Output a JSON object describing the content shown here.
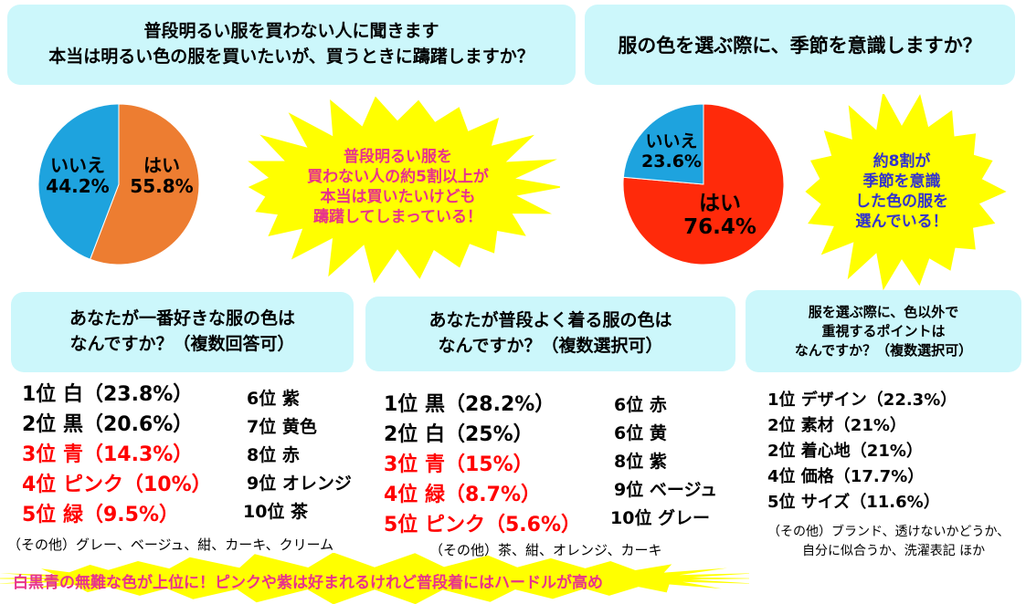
{
  "q1": {
    "question_lines": [
      "普段明るい服を買わない人に聞きます",
      "本当は明るい色の服を買いたいが、買うときに躊躇しますか？"
    ],
    "burst_lines": [
      "普段明るい服を",
      "買わない人の約5割以上が",
      "本当は買いたいけども",
      "躊躇してしまっている！"
    ]
  },
  "q2": {
    "question": "服の色を選ぶ際に、季節を意識しますか？",
    "burst_lines": [
      "約8割が",
      "季節を意識",
      "した色の服を",
      "選んでいる！"
    ]
  },
  "chart_data": [
    {
      "type": "pie",
      "categories": [
        "はい",
        "いいえ"
      ],
      "values": [
        55.8,
        44.2
      ],
      "value_labels": [
        "55.8%",
        "44.2%"
      ],
      "colors": [
        "#ed7d31",
        "#1ea3de"
      ]
    },
    {
      "type": "pie",
      "categories": [
        "はい",
        "いいえ"
      ],
      "values": [
        76.4,
        23.6
      ],
      "value_labels": [
        "76.4%",
        "23.6%"
      ],
      "colors": [
        "#ff2a0a",
        "#1ea3de"
      ]
    }
  ],
  "q3": {
    "question_lines": [
      "あなたが一番好きな服の色は",
      "なんですか？（複数回答可）"
    ],
    "left": [
      "1位 白（23.8%）",
      "2位 黒（20.6%）",
      "3位 青（14.3%）",
      "4位 ピンク（10%）",
      "5位 緑（9.5%）"
    ],
    "right": [
      "6位 紫",
      "7位 黄色",
      "8位 赤",
      "9位 オレンジ",
      "10位 茶"
    ],
    "other": "（その他）グレー、ベージュ、紺、カーキ、クリーム"
  },
  "q4": {
    "question_lines": [
      "あなたが普段よく着る服の色は",
      "なんですか？（複数選択可）"
    ],
    "left": [
      "1位 黒（28.2%）",
      "2位 白（25%）",
      "3位 青（15%）",
      "4位 緑（8.7%）",
      "5位 ピンク（5.6%）"
    ],
    "right": [
      "6位 赤",
      "6位 黄",
      "8位 紫",
      "9位 ベージュ",
      "10位 グレー"
    ],
    "other": "（その他）茶、紺、オレンジ、カーキ"
  },
  "q5": {
    "question_lines": [
      "服を選ぶ際に、色以外で",
      "重視するポイントは",
      "なんですか？（複数選択可）"
    ],
    "items": [
      "1位 デザイン（22.3%）",
      "2位 素材（21%）",
      "2位 着心地（21%）",
      "4位 価格（17.7%）",
      "5位 サイズ（11.6%）"
    ],
    "other_lines": [
      "（その他）ブランド、透けないかどうか、",
      "自分に似合うか、洗濯表記 ほか"
    ]
  },
  "banner": "白黒青の無難な色が上位に！ピンクや紫は好まれるけれど普段着にはハードルが高め",
  "colors": {
    "box": "#ccf7fb",
    "burst": "#ffff00",
    "burst_text_pink": "#e8328c",
    "burst_text_blue": "#3333cc",
    "highlight_red": "#ff0000"
  }
}
